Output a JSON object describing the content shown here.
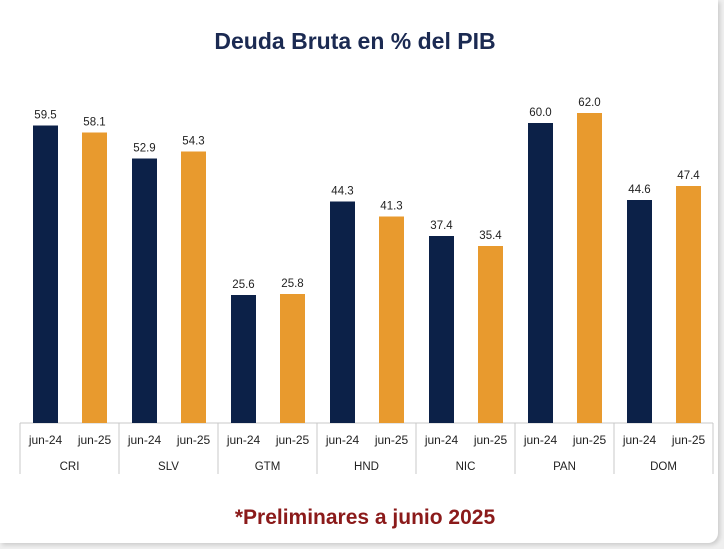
{
  "chart_data": {
    "type": "bar",
    "title": "Deuda Bruta en % del PIB",
    "categories": [
      "CRI",
      "SLV",
      "GTM",
      "HND",
      "NIC",
      "PAN",
      "DOM"
    ],
    "sub_categories": [
      "jun-24",
      "jun-25"
    ],
    "series": [
      {
        "values": [
          59.5,
          52.9,
          25.6,
          44.3,
          37.4,
          60.0,
          44.6
        ],
        "labels": [
          "59.5",
          "52.9",
          "25.6",
          "44.3",
          "37.4",
          "60.0",
          "44.6"
        ]
      },
      {
        "values": [
          58.1,
          54.3,
          25.8,
          41.3,
          35.4,
          62.0,
          47.4
        ],
        "labels": [
          "58.1",
          "54.3",
          "25.8",
          "41.3",
          "35.4",
          "62.0",
          "47.4"
        ]
      }
    ],
    "colors": [
      "#0c2148",
      "#e89a2e"
    ],
    "ylim": [
      0,
      68
    ],
    "grid": false,
    "legend": "none"
  },
  "footnote": "*Preliminares a junio 2025"
}
